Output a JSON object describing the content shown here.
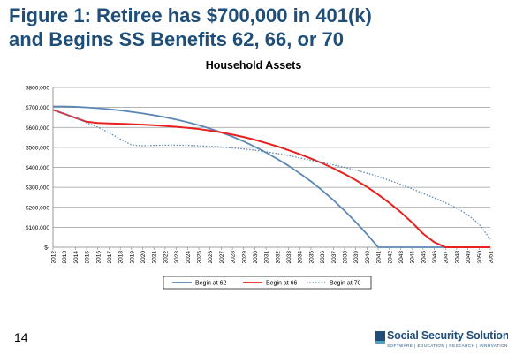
{
  "slide": {
    "title_line1": "Figure 1: Retiree has $700,000 in 401(k)",
    "title_line2": "and Begins SS Benefits 62, 66, or 70",
    "page_number": "14",
    "logo_text": "Social Security Solutions",
    "logo_tagline": "SOFTWARE | EDUCATION | RESEARCH | INNOVATION",
    "title_color": "#1f4e79"
  },
  "chart_data": {
    "type": "line",
    "title": "Household Assets",
    "xlabel": "",
    "ylabel": "",
    "x": [
      2012,
      2013,
      2014,
      2015,
      2016,
      2017,
      2018,
      2019,
      2020,
      2021,
      2022,
      2023,
      2024,
      2025,
      2026,
      2027,
      2028,
      2029,
      2030,
      2031,
      2032,
      2033,
      2034,
      2035,
      2036,
      2037,
      2038,
      2039,
      2040,
      2041,
      2042,
      2043,
      2044,
      2045,
      2046,
      2047,
      2048,
      2049,
      2050,
      2051
    ],
    "x_tick_labels": [
      "2012",
      "2013",
      "2014",
      "2015",
      "2016",
      "2017",
      "2018",
      "2019",
      "2020",
      "2021",
      "2022",
      "2023",
      "2024",
      "2025",
      "2026",
      "2027",
      "2028",
      "2029",
      "2030",
      "2031",
      "2032",
      "2033",
      "2034",
      "2035",
      "2036",
      "2037",
      "2038",
      "2039",
      "2040",
      "2041",
      "2042",
      "2043",
      "2044",
      "2045",
      "2046",
      "2047",
      "2048",
      "2049",
      "2050",
      "2051"
    ],
    "ylim": [
      0,
      800000
    ],
    "y_ticks": [
      0,
      100000,
      200000,
      300000,
      400000,
      500000,
      600000,
      700000,
      800000
    ],
    "y_tick_labels": [
      "$-",
      "$100,000",
      "$200,000",
      "$300,000",
      "$400,000",
      "$500,000",
      "$600,000",
      "$700,000",
      "$800,000"
    ],
    "grid": true,
    "legend_position": "bottom",
    "series": [
      {
        "name": "Begin at 62",
        "color": "#5b87b5",
        "style": "solid",
        "values": [
          705000,
          705000,
          703000,
          700000,
          696000,
          691000,
          685000,
          678000,
          670000,
          661000,
          651000,
          639000,
          626000,
          611000,
          594000,
          575000,
          554000,
          530000,
          503000,
          474000,
          442000,
          408000,
          370000,
          330000,
          285000,
          236000,
          183000,
          126000,
          65000,
          0,
          0,
          0,
          0,
          0,
          0,
          0,
          0,
          0,
          0,
          0
        ]
      },
      {
        "name": "Begin at 66",
        "color": "#e8201f",
        "style": "solid",
        "values": [
          688000,
          668000,
          648000,
          628000,
          622000,
          620000,
          618000,
          616000,
          614000,
          611000,
          607000,
          603000,
          598000,
          592000,
          584000,
          575000,
          564000,
          552000,
          538000,
          522000,
          505000,
          486000,
          466000,
          444000,
          421000,
          395000,
          367000,
          336000,
          302000,
          264000,
          222000,
          176000,
          125000,
          68000,
          25000,
          0,
          0,
          0,
          0,
          0
        ]
      },
      {
        "name": "Begin at 70",
        "color": "#5b87b5",
        "style": "dotted",
        "values": [
          688000,
          668000,
          648000,
          623000,
          601000,
          573000,
          542000,
          512000,
          508000,
          510000,
          511000,
          511000,
          510000,
          508000,
          505000,
          502000,
          497000,
          492000,
          486000,
          478000,
          469000,
          459000,
          447000,
          435000,
          424000,
          412000,
          400000,
          386000,
          371000,
          354000,
          335000,
          315000,
          293000,
          270000,
          247000,
          223000,
          196000,
          162000,
          115000,
          40000
        ]
      }
    ]
  }
}
